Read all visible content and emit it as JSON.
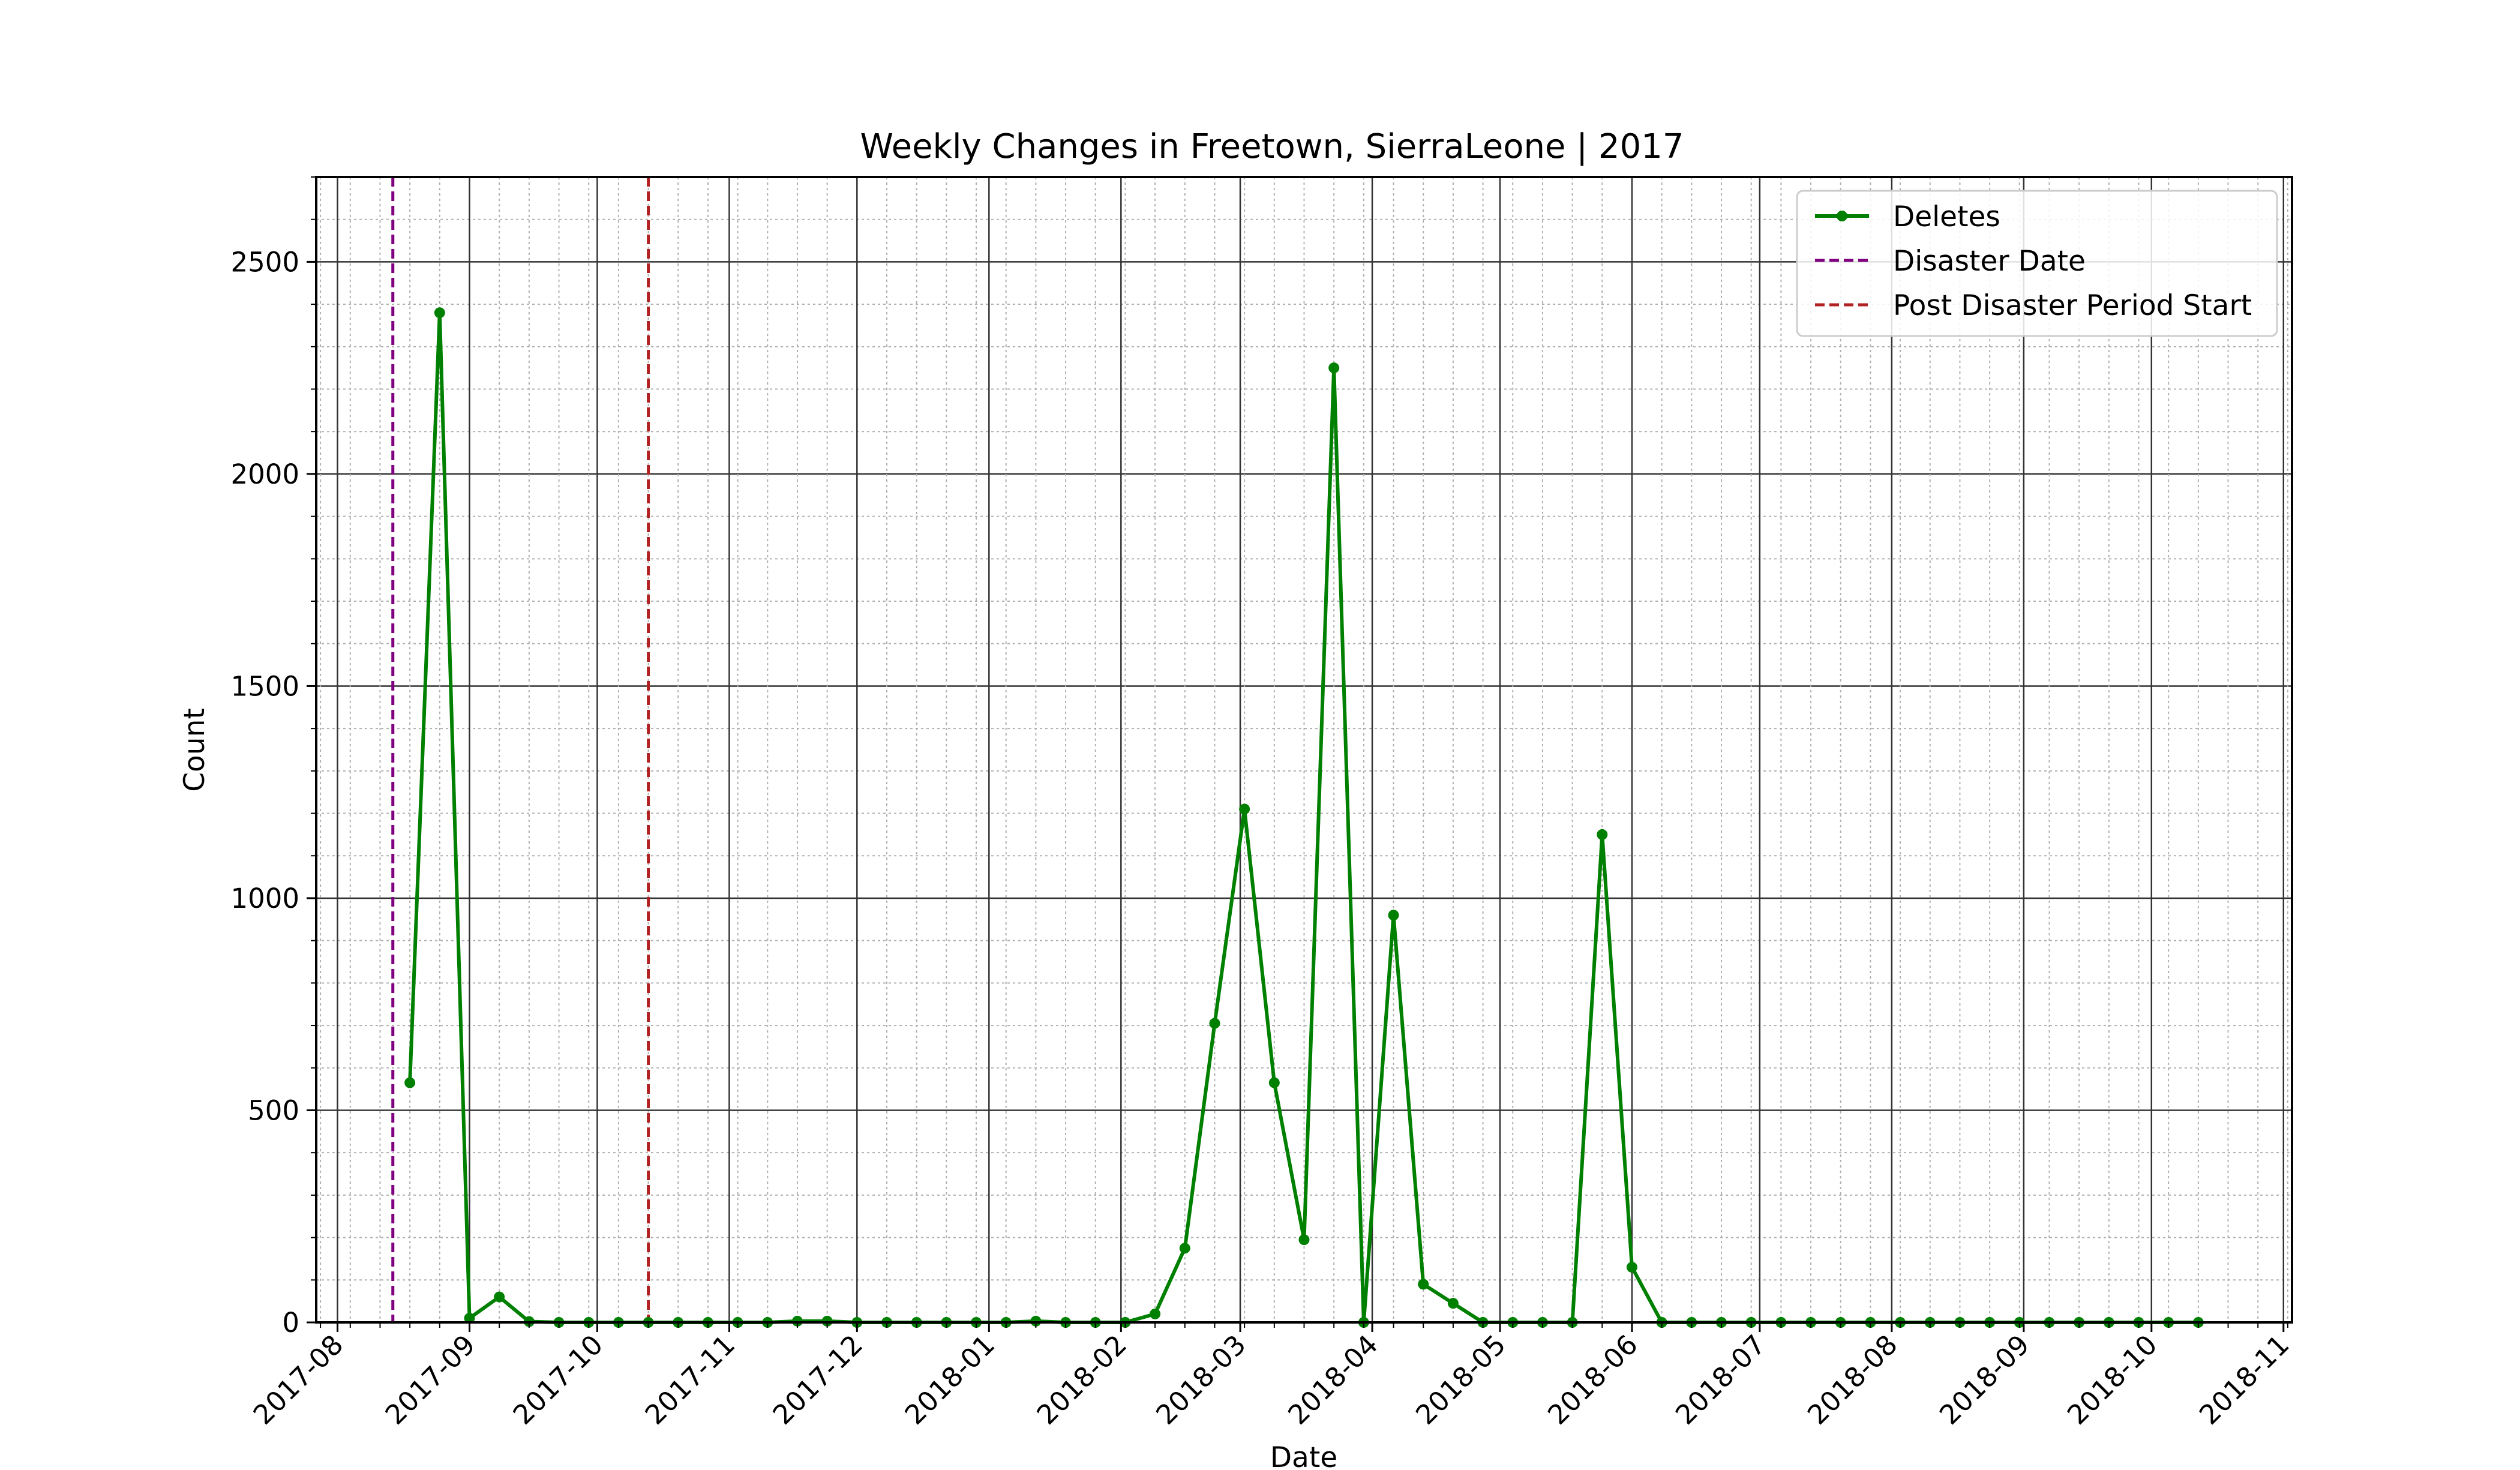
{
  "chart_data": {
    "type": "line",
    "title": "Weekly Changes in Freetown, SierraLeone | 2017",
    "xlabel": "Date",
    "ylabel": "Count",
    "x_tick_labels": [
      "2017-08",
      "2017-09",
      "2017-10",
      "2017-11",
      "2017-12",
      "2018-01",
      "2018-02",
      "2018-03",
      "2018-04",
      "2018-05",
      "2018-06",
      "2018-07",
      "2018-08",
      "2018-09",
      "2018-10",
      "2018-11"
    ],
    "y_tick_labels": [
      "0",
      "500",
      "1000",
      "1500",
      "2000",
      "2500"
    ],
    "ylim": [
      0,
      2700
    ],
    "xlim": [
      "2017-07-27",
      "2018-11-03"
    ],
    "grid": true,
    "minor_grid": true,
    "legend_position": "top-right",
    "colors": {
      "deletes": "#008000",
      "disaster": "#800080",
      "post_disaster": "#b22222"
    },
    "series": [
      {
        "name": "Deletes",
        "x": [
          "2017-08-18",
          "2017-08-25",
          "2017-09-01",
          "2017-09-08",
          "2017-09-15",
          "2017-09-22",
          "2017-09-29",
          "2017-10-06",
          "2017-10-13",
          "2017-10-20",
          "2017-10-27",
          "2017-11-03",
          "2017-11-10",
          "2017-11-17",
          "2017-11-24",
          "2017-12-01",
          "2017-12-08",
          "2017-12-15",
          "2017-12-22",
          "2017-12-29",
          "2018-01-05",
          "2018-01-12",
          "2018-01-19",
          "2018-01-26",
          "2018-02-02",
          "2018-02-09",
          "2018-02-16",
          "2018-02-23",
          "2018-03-02",
          "2018-03-09",
          "2018-03-16",
          "2018-03-23",
          "2018-03-30",
          "2018-04-06",
          "2018-04-13",
          "2018-04-20",
          "2018-04-27",
          "2018-05-04",
          "2018-05-11",
          "2018-05-18",
          "2018-05-25",
          "2018-06-01",
          "2018-06-08",
          "2018-06-15",
          "2018-06-22",
          "2018-06-29",
          "2018-07-06",
          "2018-07-13",
          "2018-07-20",
          "2018-07-27",
          "2018-08-03",
          "2018-08-10",
          "2018-08-17",
          "2018-08-24",
          "2018-08-31",
          "2018-09-07",
          "2018-09-14",
          "2018-09-21",
          "2018-09-28",
          "2018-10-05",
          "2018-10-12"
        ],
        "values": [
          565,
          2380,
          10,
          60,
          2,
          0,
          0,
          0,
          0,
          0,
          0,
          0,
          0,
          3,
          3,
          0,
          0,
          0,
          0,
          0,
          0,
          3,
          0,
          0,
          0,
          20,
          175,
          705,
          1210,
          565,
          195,
          2250,
          0,
          960,
          90,
          45,
          0,
          0,
          0,
          0,
          1150,
          130,
          0,
          0,
          0,
          0,
          0,
          0,
          0,
          0,
          0,
          0,
          0,
          0,
          0,
          0,
          0,
          0,
          0,
          0,
          0
        ]
      }
    ],
    "vlines": [
      {
        "name": "Disaster Date",
        "x": "2017-08-14",
        "style": "dashed"
      },
      {
        "name": "Post Disaster Period Start",
        "x": "2017-10-13",
        "style": "dashed"
      }
    ]
  }
}
